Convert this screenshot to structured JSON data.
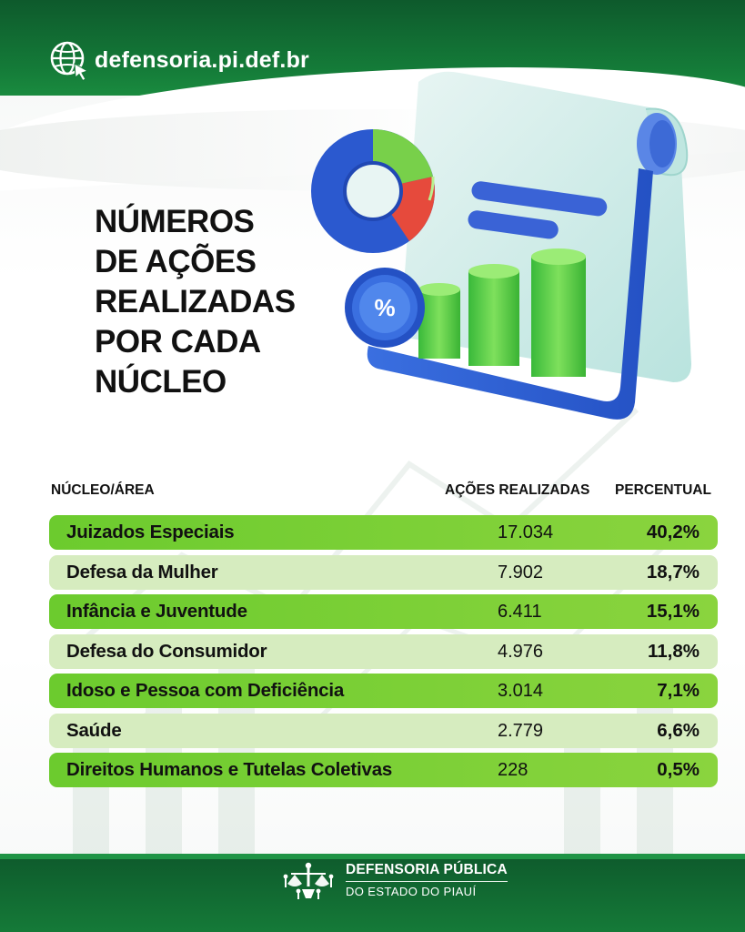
{
  "header": {
    "site_url": "defensoria.pi.def.br"
  },
  "title_lines": [
    "NÚMEROS",
    "DE AÇÕES",
    "REALIZADAS",
    "POR CADA",
    "NÚCLEO"
  ],
  "table": {
    "headers": {
      "area": "NÚCLEO/ÁREA",
      "acoes": "AÇÕES REALIZADAS",
      "percentual": "PERCENTUAL"
    },
    "rows": [
      {
        "area": "Juizados Especiais",
        "acoes": "17.034",
        "percentual": "40,2%"
      },
      {
        "area": "Defesa da Mulher",
        "acoes": "7.902",
        "percentual": "18,7%"
      },
      {
        "area": "Infância e Juventude",
        "acoes": "6.411",
        "percentual": "15,1%"
      },
      {
        "area": "Defesa do Consumidor",
        "acoes": "4.976",
        "percentual": "11,8%"
      },
      {
        "area": "Idoso e Pessoa com Deficiência",
        "acoes": "3.014",
        "percentual": "7,1%"
      },
      {
        "area": "Saúde",
        "acoes": "2.779",
        "percentual": "6,6%"
      },
      {
        "area": "Direitos Humanos e Tutelas Coletivas",
        "acoes": "228",
        "percentual": "0,5%"
      }
    ]
  },
  "footer": {
    "brand_line1": "DEFENSORIA PÚBLICA",
    "brand_line2": "DO ESTADO DO PIAUÍ"
  },
  "illustration": {
    "badge_symbol": "%",
    "icon": "report-chart-icon"
  },
  "colors": {
    "dark_green": "#0e5a2c",
    "row_green": "#7ccf35",
    "row_light": "#d6ecbf"
  }
}
